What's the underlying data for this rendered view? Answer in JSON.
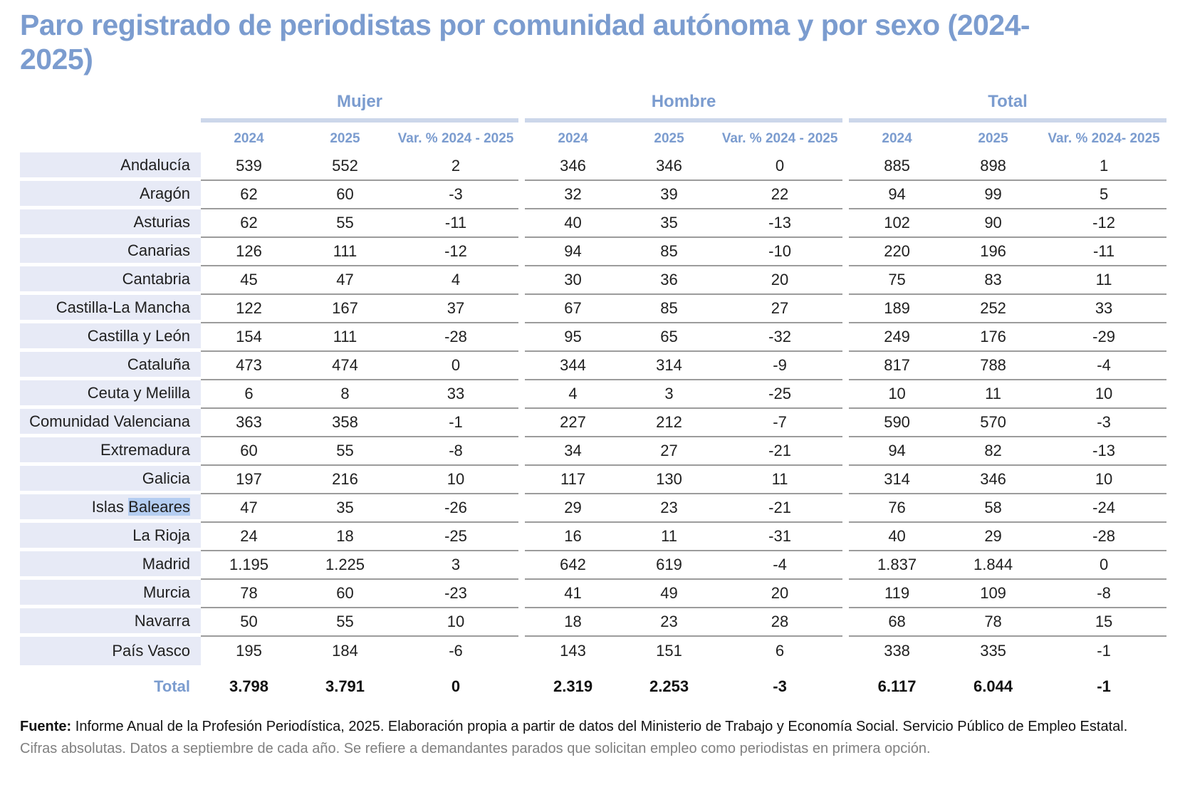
{
  "page": {
    "title": "Paro registrado de periodistas por comunidad autónoma y por sexo (2024-2025)"
  },
  "colors": {
    "accent_blue": "#7b9ccf",
    "label_cell_bg": "#e7eaf6",
    "selection_highlight": "#b4cdf1",
    "row_border_gray": "#9c9c9c",
    "group_underline_bar": "#ccd7ea",
    "note_gray": "#808080"
  },
  "chart_data": {
    "type": "table",
    "title": "Paro registrado de periodistas por comunidad autónoma y por sexo (2024-2025)",
    "column_groups": [
      {
        "label": "Mujer",
        "columns": [
          "2024",
          "2025",
          "Var. % 2024 - 2025"
        ]
      },
      {
        "label": "Hombre",
        "columns": [
          "2024",
          "2025",
          "Var. % 2024 - 2025"
        ]
      },
      {
        "label": "Total",
        "columns": [
          "2024",
          "2025",
          "Var. % 2024- 2025"
        ]
      }
    ],
    "rows": [
      {
        "label": "Andalucía",
        "values": [
          "539",
          "552",
          "2",
          "346",
          "346",
          "0",
          "885",
          "898",
          "1"
        ]
      },
      {
        "label": "Aragón",
        "values": [
          "62",
          "60",
          "-3",
          "32",
          "39",
          "22",
          "94",
          "99",
          "5"
        ]
      },
      {
        "label": "Asturias",
        "values": [
          "62",
          "55",
          "-11",
          "40",
          "35",
          "-13",
          "102",
          "90",
          "-12"
        ]
      },
      {
        "label": "Canarias",
        "values": [
          "126",
          "111",
          "-12",
          "94",
          "85",
          "-10",
          "220",
          "196",
          "-11"
        ]
      },
      {
        "label": "Cantabria",
        "values": [
          "45",
          "47",
          "4",
          "30",
          "36",
          "20",
          "75",
          "83",
          "11"
        ]
      },
      {
        "label": "Castilla-La Mancha",
        "values": [
          "122",
          "167",
          "37",
          "67",
          "85",
          "27",
          "189",
          "252",
          "33"
        ]
      },
      {
        "label": "Castilla y León",
        "values": [
          "154",
          "111",
          "-28",
          "95",
          "65",
          "-32",
          "249",
          "176",
          "-29"
        ]
      },
      {
        "label": "Cataluña",
        "values": [
          "473",
          "474",
          "0",
          "344",
          "314",
          "-9",
          "817",
          "788",
          "-4"
        ]
      },
      {
        "label": "Ceuta y Melilla",
        "values": [
          "6",
          "8",
          "33",
          "4",
          "3",
          "-25",
          "10",
          "11",
          "10"
        ]
      },
      {
        "label": "Comunidad Valenciana",
        "values": [
          "363",
          "358",
          "-1",
          "227",
          "212",
          "-7",
          "590",
          "570",
          "-3"
        ]
      },
      {
        "label": "Extremadura",
        "values": [
          "60",
          "55",
          "-8",
          "34",
          "27",
          "-21",
          "94",
          "82",
          "-13"
        ]
      },
      {
        "label": "Galicia",
        "values": [
          "197",
          "216",
          "10",
          "117",
          "130",
          "11",
          "314",
          "346",
          "10"
        ]
      },
      {
        "label": "Islas Baleares",
        "label_prefix": "Islas ",
        "label_highlight": "Baleares",
        "values": [
          "47",
          "35",
          "-26",
          "29",
          "23",
          "-21",
          "76",
          "58",
          "-24"
        ]
      },
      {
        "label": "La Rioja",
        "values": [
          "24",
          "18",
          "-25",
          "16",
          "11",
          "-31",
          "40",
          "29",
          "-28"
        ]
      },
      {
        "label": "Madrid",
        "values": [
          "1.195",
          "1.225",
          "3",
          "642",
          "619",
          "-4",
          "1.837",
          "1.844",
          "0"
        ]
      },
      {
        "label": "Murcia",
        "values": [
          "78",
          "60",
          "-23",
          "41",
          "49",
          "20",
          "119",
          "109",
          "-8"
        ]
      },
      {
        "label": "Navarra",
        "values": [
          "50",
          "55",
          "10",
          "18",
          "23",
          "28",
          "68",
          "78",
          "15"
        ]
      },
      {
        "label": "País Vasco",
        "values": [
          "195",
          "184",
          "-6",
          "143",
          "151",
          "6",
          "338",
          "335",
          "-1"
        ]
      }
    ],
    "total_row": {
      "label": "Total",
      "values": [
        "3.798",
        "3.791",
        "0",
        "2.319",
        "2.253",
        "-3",
        "6.117",
        "6.044",
        "-1"
      ]
    }
  },
  "footer": {
    "source_label": "Fuente:",
    "source_text": " Informe Anual de la Profesión Periodística, 2025. Elaboración propia a partir de datos del Ministerio de Trabajo y Economía Social. Servicio Público de Empleo Estatal.",
    "note_text": "Cifras absolutas. Datos a septiembre de cada año. Se refiere a demandantes parados que solicitan empleo como periodistas en primera opción."
  }
}
